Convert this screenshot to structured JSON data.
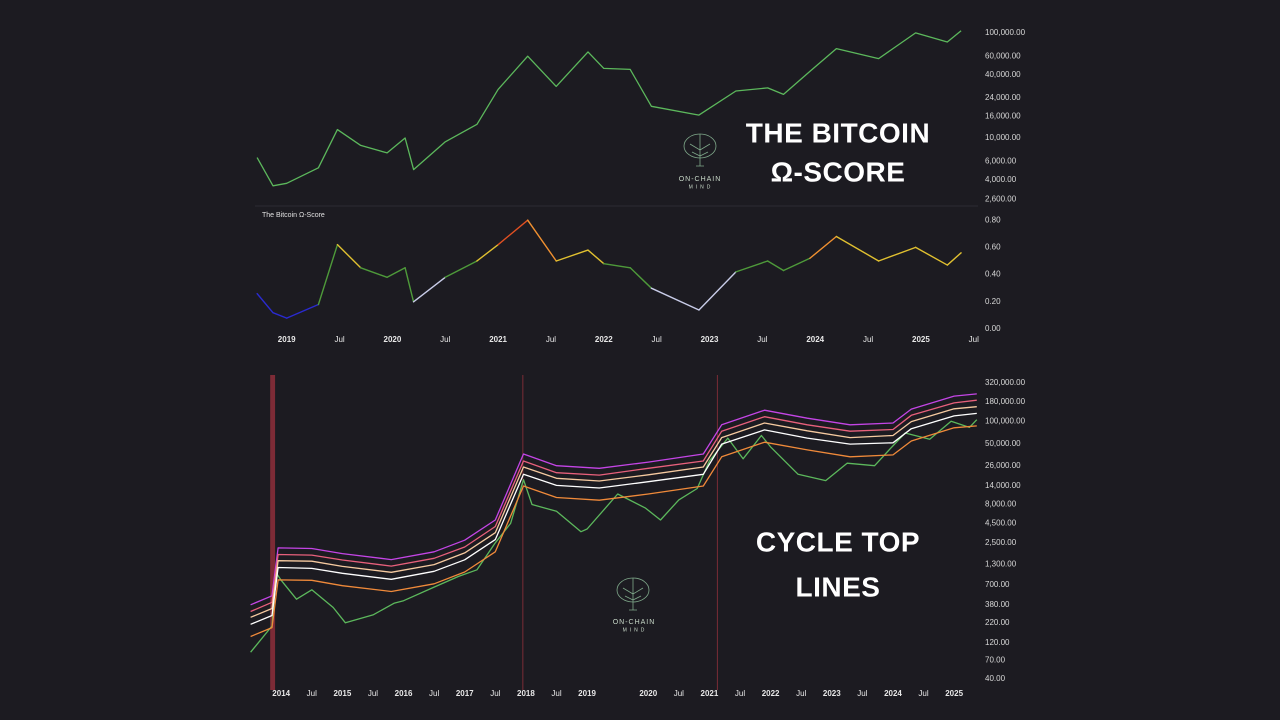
{
  "chart_data": [
    {
      "type": "line",
      "log_y": true,
      "grid": false,
      "xlim": [
        2018.7,
        2025.54
      ],
      "x": [
        2018.72,
        2018.87,
        2019.0,
        2019.3,
        2019.48,
        2019.7,
        2019.95,
        2020.12,
        2020.2,
        2020.5,
        2020.8,
        2021.0,
        2021.28,
        2021.55,
        2021.85,
        2022.0,
        2022.25,
        2022.45,
        2022.9,
        2023.25,
        2023.55,
        2023.7,
        2023.95,
        2024.2,
        2024.6,
        2024.95,
        2025.25,
        2025.38
      ],
      "series": [
        {
          "color": "#5cb85c",
          "values": [
            6500,
            3500,
            3700,
            5200,
            12000,
            8500,
            7200,
            10000,
            5000,
            9200,
            13500,
            29000,
            60000,
            31000,
            66000,
            46000,
            45000,
            20000,
            16500,
            28000,
            30000,
            26000,
            43000,
            71000,
            57000,
            100000,
            82000,
            105000
          ]
        }
      ],
      "ylim": [
        2300,
        119000
      ],
      "yticks": [
        {
          "value": 100000,
          "label": "100,000.00"
        },
        {
          "value": 60000,
          "label": "60,000.00"
        },
        {
          "value": 40000,
          "label": "40,000.00"
        },
        {
          "value": 24000,
          "label": "24,000.00"
        },
        {
          "value": 16000,
          "label": "16,000.00"
        },
        {
          "value": 10000,
          "label": "10,000.00"
        },
        {
          "value": 6000,
          "label": "6,000.00"
        },
        {
          "value": 4000,
          "label": "4,000.00"
        },
        {
          "value": 2600,
          "label": "2,600.00"
        }
      ]
    },
    {
      "type": "line",
      "log_y": false,
      "grid": false,
      "title": "The Bitcoin Ω-Score",
      "xlim": [
        2018.7,
        2025.54
      ],
      "x": [
        2018.72,
        2018.87,
        2019.0,
        2019.3,
        2019.48,
        2019.7,
        2019.95,
        2020.12,
        2020.2,
        2020.5,
        2020.8,
        2021.0,
        2021.28,
        2021.55,
        2021.85,
        2022.0,
        2022.25,
        2022.45,
        2022.9,
        2023.25,
        2023.55,
        2023.7,
        2023.95,
        2024.2,
        2024.6,
        2024.95,
        2025.25,
        2025.38
      ],
      "series": [
        {
          "values": [
            0.26,
            0.12,
            0.08,
            0.18,
            0.62,
            0.45,
            0.38,
            0.45,
            0.2,
            0.38,
            0.5,
            0.62,
            0.8,
            0.5,
            0.58,
            0.48,
            0.45,
            0.3,
            0.14,
            0.42,
            0.5,
            0.43,
            0.52,
            0.68,
            0.5,
            0.6,
            0.47,
            0.56
          ]
        }
      ],
      "color_stops": [
        {
          "min": 0,
          "color": "#2a2ad0"
        },
        {
          "min": 0.2,
          "color": "#c8cce8"
        },
        {
          "min": 0.3,
          "color": "#4e9a3a"
        },
        {
          "min": 0.5,
          "color": "#e0c030"
        },
        {
          "min": 0.6,
          "color": "#f09030"
        },
        {
          "min": 0.7,
          "color": "#e05022"
        }
      ],
      "ylim": [
        0,
        0.86
      ],
      "yticks": [
        {
          "value": 0.8,
          "label": "0.80"
        },
        {
          "value": 0.6,
          "label": "0.60"
        },
        {
          "value": 0.4,
          "label": "0.40"
        },
        {
          "value": 0.2,
          "label": "0.20"
        },
        {
          "value": 0,
          "label": "0.00"
        }
      ],
      "xticks": [
        2019,
        {
          "value": 2019.5,
          "label": "Jul"
        },
        2020,
        {
          "value": 2020.5,
          "label": "Jul"
        },
        2021,
        {
          "value": 2021.5,
          "label": "Jul"
        },
        2022,
        {
          "value": 2022.5,
          "label": "Jul"
        },
        2023,
        {
          "value": 2023.5,
          "label": "Jul"
        },
        2024,
        {
          "value": 2024.5,
          "label": "Jul"
        },
        2025,
        {
          "value": 2025.5,
          "label": "Jul"
        }
      ]
    },
    {
      "type": "line",
      "log_y": true,
      "grid": false,
      "xlim": [
        2013.49,
        2025.39
      ],
      "x": [
        2013.5,
        2013.85,
        2013.95,
        2014.5,
        2015.0,
        2015.8,
        2016.5,
        2017.0,
        2017.5,
        2017.96,
        2018.5,
        2019.2,
        2020.0,
        2020.9,
        2021.2,
        2021.9,
        2022.6,
        2023.3,
        2024.0,
        2024.3,
        2025.0,
        2025.37
      ],
      "series": [
        {
          "color": "#5cb85c",
          "x": [
            2013.5,
            2013.85,
            2013.92,
            2014.0,
            2014.25,
            2014.5,
            2014.85,
            2015.05,
            2015.5,
            2015.85,
            2016.0,
            2016.5,
            2016.9,
            2017.2,
            2017.5,
            2017.75,
            2017.96,
            2018.1,
            2018.5,
            2018.9,
            2019.0,
            2019.5,
            2019.95,
            2020.2,
            2020.5,
            2020.8,
            2021.0,
            2021.3,
            2021.55,
            2021.85,
            2022.0,
            2022.45,
            2022.9,
            2023.25,
            2023.7,
            2023.95,
            2024.2,
            2024.6,
            2024.95,
            2025.25,
            2025.37
          ],
          "values": [
            90,
            200,
            1000,
            800,
            450,
            600,
            350,
            220,
            280,
            400,
            430,
            650,
            900,
            1100,
            2500,
            4500,
            17000,
            8000,
            6500,
            3500,
            3800,
            11000,
            7200,
            5000,
            9200,
            13000,
            30000,
            60000,
            32000,
            65000,
            46000,
            20000,
            16500,
            28000,
            26000,
            43000,
            70000,
            58000,
            100000,
            83000,
            105000
          ]
        },
        {
          "color": "#c445e6",
          "values": [
            380,
            500,
            2140,
            2100,
            1800,
            1500,
            1900,
            2700,
            5000,
            37000,
            26000,
            24000,
            29000,
            37000,
            90000,
            140000,
            110000,
            90000,
            95000,
            145000,
            215000,
            230000
          ]
        },
        {
          "color": "#e8607c",
          "values": [
            310,
            410,
            1750,
            1720,
            1480,
            1230,
            1560,
            2200,
            4100,
            30000,
            21000,
            19500,
            24000,
            30000,
            74000,
            115000,
            90000,
            74000,
            78000,
            120000,
            175000,
            190000
          ]
        },
        {
          "color": "#f6caa0",
          "values": [
            260,
            340,
            1450,
            1430,
            1220,
            1020,
            1290,
            1840,
            3400,
            25000,
            17700,
            16300,
            19700,
            25000,
            61000,
            95000,
            75000,
            61000,
            65000,
            99000,
            146000,
            156000
          ]
        },
        {
          "color": "#ffffff",
          "values": [
            210,
            275,
            1180,
            1150,
            990,
            825,
            1050,
            1490,
            2750,
            20000,
            14300,
            13200,
            16000,
            20000,
            50000,
            77000,
            60000,
            50000,
            52000,
            80000,
            118000,
            127000
          ]
        },
        {
          "color": "#f08a3a",
          "values": [
            145,
            190,
            810,
            800,
            680,
            570,
            720,
            1030,
            1900,
            14000,
            9900,
            9100,
            11000,
            14000,
            34000,
            53000,
            42000,
            34000,
            36000,
            55000,
            82000,
            87000
          ]
        }
      ],
      "bands": [
        {
          "range": [
            2013.82,
            2013.9
          ],
          "color": "#8e2e3a"
        }
      ],
      "vlines": [
        {
          "x": 2017.95,
          "color": "#7a2c36"
        },
        {
          "x": 2021.13,
          "color": "#7a2c36"
        }
      ],
      "ylim": [
        28.6,
        408000
      ],
      "yticks": [
        {
          "value": 320000,
          "label": "320,000.00"
        },
        {
          "value": 180000,
          "label": "180,000.00"
        },
        {
          "value": 100000,
          "label": "100,000.00"
        },
        {
          "value": 50000,
          "label": "50,000.00"
        },
        {
          "value": 26000,
          "label": "26,000.00"
        },
        {
          "value": 14000,
          "label": "14,000.00"
        },
        {
          "value": 8000,
          "label": "8,000.00"
        },
        {
          "value": 4500,
          "label": "4,500.00"
        },
        {
          "value": 2500,
          "label": "2,500.00"
        },
        {
          "value": 1300,
          "label": "1,300.00"
        },
        {
          "value": 700,
          "label": "700.00"
        },
        {
          "value": 380,
          "label": "380.00"
        },
        {
          "value": 220,
          "label": "220.00"
        },
        {
          "value": 120,
          "label": "120.00"
        },
        {
          "value": 70,
          "label": "70.00"
        },
        {
          "value": 40,
          "label": "40.00"
        }
      ],
      "xticks": [
        2014,
        {
          "value": 2014.5,
          "label": "Jul"
        },
        2015,
        {
          "value": 2015.5,
          "label": "Jul"
        },
        2016,
        {
          "value": 2016.5,
          "label": "Jul"
        },
        2017,
        {
          "value": 2017.5,
          "label": "Jul"
        },
        2018,
        {
          "value": 2018.5,
          "label": "Jul"
        },
        2019,
        2020,
        {
          "value": 2020.5,
          "label": "Jul"
        },
        2021,
        {
          "value": 2021.5,
          "label": "Jul"
        },
        2022,
        {
          "value": 2022.5,
          "label": "Jul"
        },
        2023,
        {
          "value": 2023.5,
          "label": "Jul"
        },
        2024,
        {
          "value": 2024.5,
          "label": "Jul"
        },
        2025
      ]
    }
  ],
  "overlays": {
    "heading_1": [
      "THE BITCOIN",
      "Ω-SCORE"
    ],
    "heading_2": [
      "CYCLE TOP",
      "LINES"
    ],
    "logo": [
      "ON-CHAIN",
      "MIND"
    ]
  }
}
